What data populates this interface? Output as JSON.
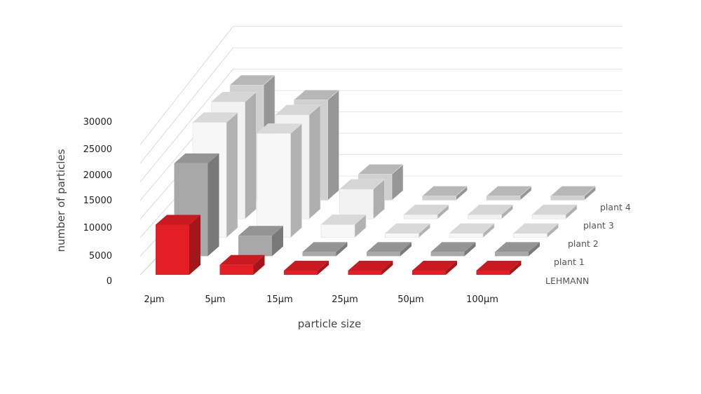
{
  "chart_data": {
    "type": "bar",
    "subtype": "3d-column",
    "title": "",
    "xlabel": "particle size",
    "ylabel": "number of particles",
    "ylim": [
      0,
      30000
    ],
    "yticks": [
      "0",
      "5000",
      "10000",
      "15000",
      "20000",
      "25000",
      "30000"
    ],
    "categories": [
      "2µm",
      "5µm",
      "15µm",
      "25µm",
      "50µm",
      "100µm"
    ],
    "series": [
      {
        "name": "LEHMANN",
        "values": [
          13500,
          2700,
          0,
          0,
          0,
          0
        ],
        "color": "#e31e24"
      },
      {
        "name": "plant 1",
        "values": [
          25000,
          5500,
          0,
          0,
          0,
          0
        ],
        "color": "#a8a8a8"
      },
      {
        "name": "plant 2",
        "values": [
          31000,
          28000,
          3500,
          0,
          0,
          0
        ],
        "color": "#f7f7f7"
      },
      {
        "name": "plant 3",
        "values": [
          31500,
          28000,
          8000,
          0,
          0,
          0
        ],
        "color": "#f2f2f2"
      },
      {
        "name": "plant 4",
        "values": [
          31000,
          27000,
          7000,
          0,
          0,
          0
        ],
        "color": "#d0d0d0"
      }
    ],
    "grid": true,
    "legend": "series labels on the right of each depth row"
  }
}
